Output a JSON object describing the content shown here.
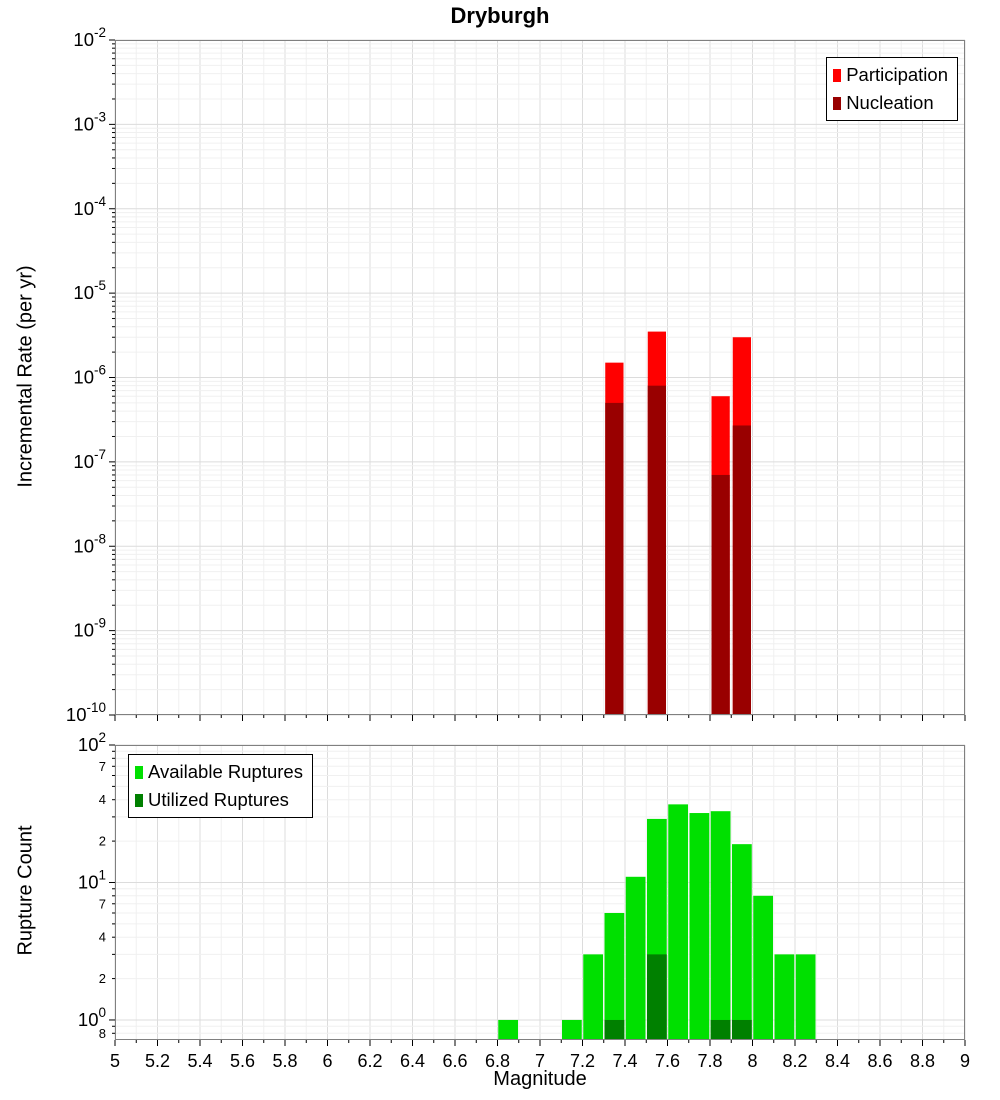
{
  "title": "Dryburgh",
  "xlabel": "Magnitude",
  "colors": {
    "participation": "#ff0000",
    "nucleation": "#990000",
    "available": "#00e000",
    "utilized": "#008000",
    "grid_major": "#dcdcdc",
    "grid_minor": "#f0f0f0",
    "plot_border": "#808080"
  },
  "x_tick_labels": [
    "5",
    "5.2",
    "5.4",
    "5.6",
    "5.8",
    "6",
    "6.2",
    "6.4",
    "6.6",
    "6.8",
    "7",
    "7.2",
    "7.4",
    "7.6",
    "7.8",
    "8",
    "8.2",
    "8.4",
    "8.6",
    "8.8",
    "9"
  ],
  "chart_data": [
    {
      "type": "bar",
      "title": "Incremental Rate MFD",
      "ylabel": "Incremental Rate (per yr)",
      "xlabel": "Magnitude",
      "xlim": [
        5,
        9
      ],
      "ylim": [
        1e-10,
        0.01
      ],
      "ylog": true,
      "grid": true,
      "legend_position": "top-right",
      "bin_width": 0.1,
      "y_ticks": [
        {
          "v": 0.01,
          "base": "10",
          "exp": "-2"
        },
        {
          "v": 0.001,
          "base": "10",
          "exp": "-3"
        },
        {
          "v": 0.0001,
          "base": "10",
          "exp": "-4"
        },
        {
          "v": 1e-05,
          "base": "10",
          "exp": "-5"
        },
        {
          "v": 1e-06,
          "base": "10",
          "exp": "-6"
        },
        {
          "v": 1e-07,
          "base": "10",
          "exp": "-7"
        },
        {
          "v": 1e-08,
          "base": "10",
          "exp": "-8"
        },
        {
          "v": 1e-09,
          "base": "10",
          "exp": "-9"
        },
        {
          "v": 1e-10,
          "base": "10",
          "exp": "-10"
        }
      ],
      "series": [
        {
          "name": "Participation",
          "color": "#ff0000",
          "points": [
            [
              7.35,
              1.5e-06
            ],
            [
              7.55,
              3.5e-06
            ],
            [
              7.85,
              6e-07
            ],
            [
              7.95,
              3e-06
            ]
          ]
        },
        {
          "name": "Nucleation",
          "color": "#990000",
          "points": [
            [
              7.35,
              5e-07
            ],
            [
              7.55,
              8e-07
            ],
            [
              7.85,
              7e-08
            ],
            [
              7.95,
              2.7e-07
            ]
          ]
        }
      ]
    },
    {
      "type": "bar",
      "title": "Rupture Count Histogram",
      "ylabel": "Rupture Count",
      "xlabel": "Magnitude",
      "xlim": [
        5,
        9
      ],
      "ylim": [
        0.715,
        100
      ],
      "ylog": true,
      "grid": true,
      "legend_position": "top-left",
      "bin_width": 0.1,
      "y_ticks": [
        {
          "v": 100,
          "base": "10",
          "exp": "2"
        },
        {
          "v": 70,
          "base": "7",
          "minor": true
        },
        {
          "v": 40,
          "base": "4",
          "minor": true
        },
        {
          "v": 20,
          "base": "2",
          "minor": true
        },
        {
          "v": 10,
          "base": "10",
          "exp": "1"
        },
        {
          "v": 7,
          "base": "7",
          "minor": true
        },
        {
          "v": 4,
          "base": "4",
          "minor": true
        },
        {
          "v": 2,
          "base": "2",
          "minor": true
        },
        {
          "v": 1,
          "base": "10",
          "exp": "0"
        },
        {
          "v": 0.8,
          "base": "8",
          "minor": true
        }
      ],
      "series": [
        {
          "name": "Available Ruptures",
          "color": "#00e000",
          "points": [
            [
              6.85,
              1
            ],
            [
              7.15,
              1
            ],
            [
              7.25,
              3
            ],
            [
              7.35,
              6
            ],
            [
              7.45,
              11
            ],
            [
              7.55,
              29
            ],
            [
              7.65,
              37
            ],
            [
              7.75,
              32
            ],
            [
              7.85,
              33
            ],
            [
              7.95,
              19
            ],
            [
              8.05,
              8
            ],
            [
              8.15,
              3
            ],
            [
              8.25,
              3
            ]
          ]
        },
        {
          "name": "Utilized Ruptures",
          "color": "#008000",
          "points": [
            [
              7.35,
              1
            ],
            [
              7.55,
              3
            ],
            [
              7.85,
              1
            ],
            [
              7.95,
              1
            ]
          ]
        }
      ]
    }
  ]
}
